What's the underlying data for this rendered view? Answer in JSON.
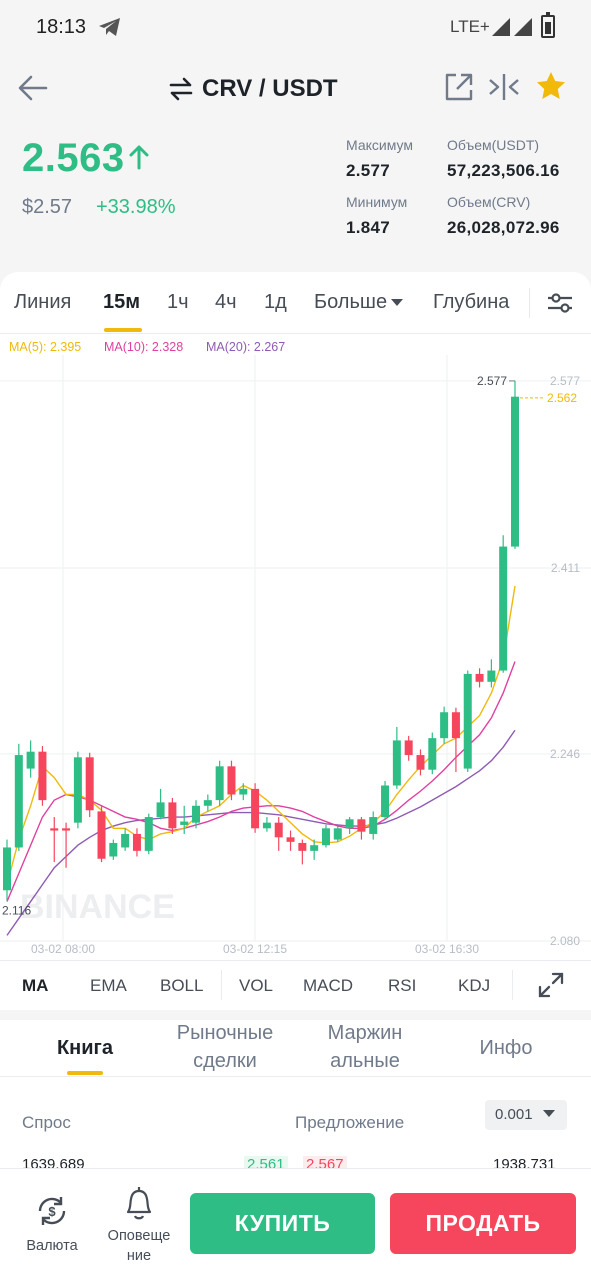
{
  "status_bar": {
    "time": "18:13",
    "network": "LTE+"
  },
  "header": {
    "pair": "CRV / USDT"
  },
  "ticker": {
    "last_price": "2.563",
    "fiat_price": "$2.57",
    "change_pct": "+33.98%",
    "high_label": "Максимум",
    "high_value": "2.577",
    "low_label": "Минимум",
    "low_value": "1.847",
    "vol_quote_label": "Объем(USDT)",
    "vol_quote_value": "57,223,506.16",
    "vol_base_label": "Объем(CRV)",
    "vol_base_value": "26,028,072.96"
  },
  "timeframe_tabs": [
    "Линия",
    "15м",
    "1ч",
    "4ч",
    "1д",
    "Больше",
    "Глубина"
  ],
  "active_timeframe": "15м",
  "ma_legend": {
    "ma5": "MA(5): 2.395",
    "ma10": "MA(10): 2.328",
    "ma20": "MA(20): 2.267",
    "ma5_color": "#f0b90b",
    "ma10_color": "#e040a0",
    "ma20_color": "#8e5bb5"
  },
  "chart_data": {
    "type": "candlestick",
    "y_axis_labels": [
      "2.577",
      "2.411",
      "2.246",
      "2.080"
    ],
    "x_axis_labels": [
      "03-02 08:00",
      "03-02 12:15",
      "03-02 16:30"
    ],
    "high_marker": "2.577",
    "low_marker": "2.116",
    "last_price_tag": "2.562",
    "watermark": "BINANCE",
    "ylim": [
      2.08,
      2.6
    ],
    "up_color": "#2ebd85",
    "down_color": "#f6465d",
    "candles": [
      {
        "o": 2.125,
        "c": 2.163,
        "h": 2.17,
        "l": 2.116
      },
      {
        "o": 2.163,
        "c": 2.245,
        "h": 2.255,
        "l": 2.16
      },
      {
        "o": 2.233,
        "c": 2.248,
        "h": 2.258,
        "l": 2.225
      },
      {
        "o": 2.248,
        "c": 2.205,
        "h": 2.253,
        "l": 2.2
      },
      {
        "o": 2.18,
        "c": 2.178,
        "h": 2.19,
        "l": 2.15
      },
      {
        "o": 2.18,
        "c": 2.178,
        "h": 2.185,
        "l": 2.145
      },
      {
        "o": 2.185,
        "c": 2.243,
        "h": 2.248,
        "l": 2.18
      },
      {
        "o": 2.243,
        "c": 2.196,
        "h": 2.247,
        "l": 2.19
      },
      {
        "o": 2.195,
        "c": 2.153,
        "h": 2.2,
        "l": 2.15
      },
      {
        "o": 2.155,
        "c": 2.167,
        "h": 2.17,
        "l": 2.152
      },
      {
        "o": 2.163,
        "c": 2.175,
        "h": 2.18,
        "l": 2.16
      },
      {
        "o": 2.175,
        "c": 2.16,
        "h": 2.18,
        "l": 2.155
      },
      {
        "o": 2.16,
        "c": 2.19,
        "h": 2.193,
        "l": 2.157
      },
      {
        "o": 2.19,
        "c": 2.203,
        "h": 2.215,
        "l": 2.188
      },
      {
        "o": 2.203,
        "c": 2.18,
        "h": 2.207,
        "l": 2.175
      },
      {
        "o": 2.183,
        "c": 2.186,
        "h": 2.2,
        "l": 2.175
      },
      {
        "o": 2.185,
        "c": 2.2,
        "h": 2.205,
        "l": 2.18
      },
      {
        "o": 2.2,
        "c": 2.205,
        "h": 2.21,
        "l": 2.195
      },
      {
        "o": 2.205,
        "c": 2.235,
        "h": 2.24,
        "l": 2.2
      },
      {
        "o": 2.235,
        "c": 2.21,
        "h": 2.24,
        "l": 2.205
      },
      {
        "o": 2.21,
        "c": 2.215,
        "h": 2.22,
        "l": 2.205
      },
      {
        "o": 2.215,
        "c": 2.18,
        "h": 2.22,
        "l": 2.176
      },
      {
        "o": 2.18,
        "c": 2.185,
        "h": 2.19,
        "l": 2.177
      },
      {
        "o": 2.185,
        "c": 2.172,
        "h": 2.19,
        "l": 2.16
      },
      {
        "o": 2.172,
        "c": 2.168,
        "h": 2.178,
        "l": 2.16
      },
      {
        "o": 2.167,
        "c": 2.16,
        "h": 2.17,
        "l": 2.148
      },
      {
        "o": 2.16,
        "c": 2.165,
        "h": 2.17,
        "l": 2.152
      },
      {
        "o": 2.165,
        "c": 2.18,
        "h": 2.183,
        "l": 2.163
      },
      {
        "o": 2.17,
        "c": 2.18,
        "h": 2.182,
        "l": 2.168
      },
      {
        "o": 2.18,
        "c": 2.188,
        "h": 2.19,
        "l": 2.175
      },
      {
        "o": 2.188,
        "c": 2.177,
        "h": 2.19,
        "l": 2.17
      },
      {
        "o": 2.175,
        "c": 2.19,
        "h": 2.195,
        "l": 2.17
      },
      {
        "o": 2.19,
        "c": 2.218,
        "h": 2.222,
        "l": 2.188
      },
      {
        "o": 2.218,
        "c": 2.258,
        "h": 2.27,
        "l": 2.215
      },
      {
        "o": 2.258,
        "c": 2.245,
        "h": 2.262,
        "l": 2.24
      },
      {
        "o": 2.245,
        "c": 2.232,
        "h": 2.25,
        "l": 2.227
      },
      {
        "o": 2.232,
        "c": 2.26,
        "h": 2.265,
        "l": 2.228
      },
      {
        "o": 2.26,
        "c": 2.283,
        "h": 2.288,
        "l": 2.255
      },
      {
        "o": 2.283,
        "c": 2.26,
        "h": 2.287,
        "l": 2.23
      },
      {
        "o": 2.233,
        "c": 2.317,
        "h": 2.32,
        "l": 2.23
      },
      {
        "o": 2.317,
        "c": 2.31,
        "h": 2.322,
        "l": 2.305
      },
      {
        "o": 2.31,
        "c": 2.32,
        "h": 2.33,
        "l": 2.305
      },
      {
        "o": 2.32,
        "c": 2.43,
        "h": 2.44,
        "l": 2.318
      },
      {
        "o": 2.43,
        "c": 2.563,
        "h": 2.577,
        "l": 2.428
      }
    ],
    "ma5": [
      2.13,
      2.17,
      2.2,
      2.235,
      2.225,
      2.21,
      2.21,
      2.205,
      2.196,
      2.18,
      2.18,
      2.173,
      2.17,
      2.175,
      2.177,
      2.18,
      2.19,
      2.195,
      2.2,
      2.21,
      2.218,
      2.213,
      2.205,
      2.195,
      2.185,
      2.175,
      2.168,
      2.167,
      2.168,
      2.173,
      2.18,
      2.185,
      2.195,
      2.21,
      2.223,
      2.235,
      2.245,
      2.255,
      2.26,
      2.27,
      2.28,
      2.3,
      2.33,
      2.395
    ],
    "ma10": [
      2.115,
      2.14,
      2.165,
      2.19,
      2.205,
      2.21,
      2.208,
      2.205,
      2.2,
      2.195,
      2.19,
      2.188,
      2.185,
      2.18,
      2.178,
      2.18,
      2.183,
      2.186,
      2.19,
      2.195,
      2.198,
      2.199,
      2.2,
      2.2,
      2.198,
      2.195,
      2.19,
      2.186,
      2.182,
      2.18,
      2.18,
      2.182,
      2.188,
      2.196,
      2.205,
      2.213,
      2.222,
      2.232,
      2.243,
      2.253,
      2.263,
      2.278,
      2.3,
      2.328
    ],
    "ma20": [
      2.085,
      2.1,
      2.115,
      2.13,
      2.145,
      2.155,
      2.165,
      2.172,
      2.178,
      2.182,
      2.185,
      2.187,
      2.188,
      2.189,
      2.19,
      2.19,
      2.191,
      2.192,
      2.193,
      2.194,
      2.194,
      2.194,
      2.193,
      2.192,
      2.19,
      2.188,
      2.186,
      2.184,
      2.183,
      2.182,
      2.182,
      2.183,
      2.185,
      2.189,
      2.194,
      2.199,
      2.205,
      2.211,
      2.217,
      2.224,
      2.231,
      2.24,
      2.252,
      2.267
    ]
  },
  "indicator_tabs": [
    "MA",
    "EMA",
    "BOLL",
    "VOL",
    "MACD",
    "RSI",
    "KDJ"
  ],
  "active_indicator": "MA",
  "bottom_tabs": {
    "book": "Книга",
    "trades_line1": "Рыночные",
    "trades_line2": "сделки",
    "margin_line1": "Маржин",
    "margin_line2": "альные",
    "info": "Инфо"
  },
  "order_book": {
    "bid_label": "Спрос",
    "ask_label": "Предложение",
    "precision": "0.001",
    "row": {
      "bid_qty": "1639.689",
      "bid_price": "2.561",
      "ask_price": "2.567",
      "ask_qty": "1938.731"
    }
  },
  "bottom_nav": {
    "currency_label": "Валюта",
    "alerts_line1": "Оповеще",
    "alerts_line2": "ние",
    "buy_label": "КУПИТЬ",
    "sell_label": "ПРОДАТЬ"
  }
}
